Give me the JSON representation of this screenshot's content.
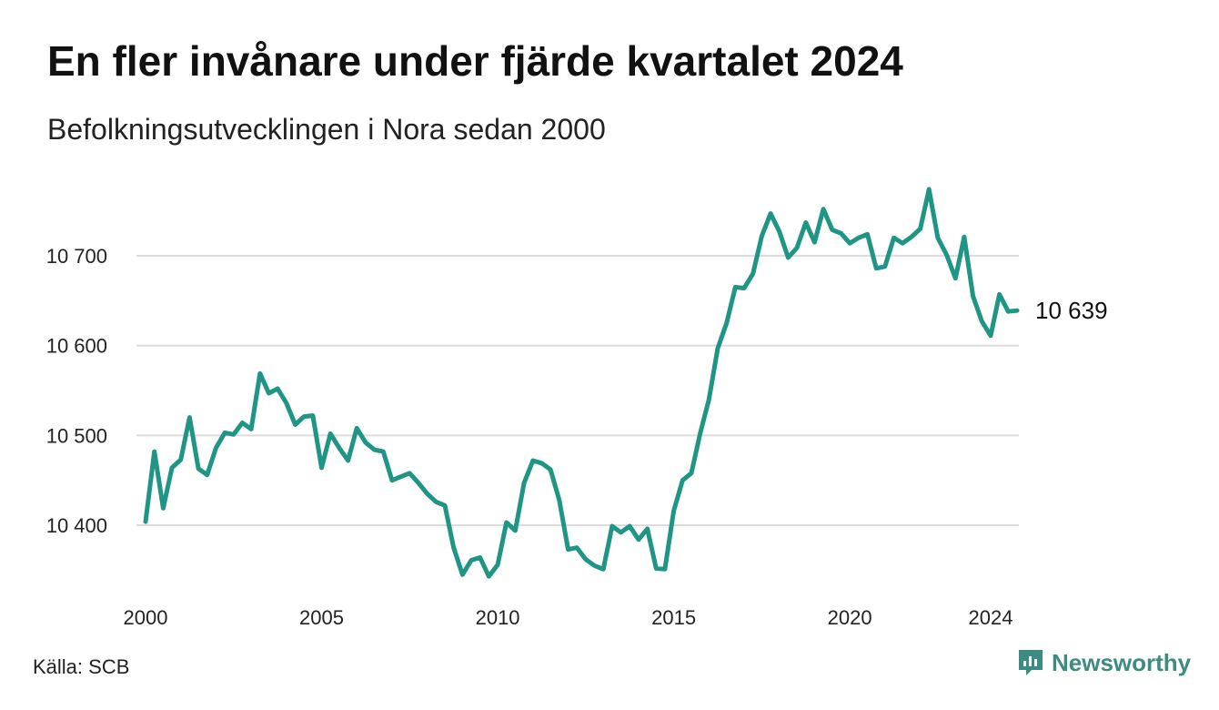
{
  "title": "En fler invånare under fjärde kvartalet 2024",
  "subtitle": "Befolkningsutvecklingen i Nora sedan 2000",
  "source": "Källa: SCB",
  "brand": {
    "name": "Newsworthy",
    "icon": "newsworthy-logo-icon",
    "color": "#3d8c83"
  },
  "chart_data": {
    "type": "line",
    "title": "En fler invånare under fjärde kvartalet 2024",
    "subtitle": "Befolkningsutvecklingen i Nora sedan 2000",
    "xlabel": "",
    "ylabel": "",
    "x_ticks": [
      "2000",
      "2005",
      "2010",
      "2015",
      "2020",
      "2024"
    ],
    "y_ticks": [
      "10 400",
      "10 500",
      "10 600",
      "10 700"
    ],
    "ylim": [
      10330,
      10780
    ],
    "grid": true,
    "line_color": "#1f9585",
    "end_label": "10 639",
    "series": [
      {
        "x": [
          "2000 Q1",
          "2000 Q2",
          "2000 Q3",
          "2000 Q4",
          "2001 Q1",
          "2001 Q2",
          "2001 Q3",
          "2001 Q4",
          "2002 Q1",
          "2002 Q2",
          "2002 Q3",
          "2002 Q4",
          "2003 Q1",
          "2003 Q2",
          "2003 Q3",
          "2003 Q4",
          "2004 Q1",
          "2004 Q2",
          "2004 Q3",
          "2004 Q4",
          "2005 Q1",
          "2005 Q2",
          "2005 Q3",
          "2005 Q4",
          "2006 Q1",
          "2006 Q2",
          "2006 Q3",
          "2006 Q4",
          "2007 Q1",
          "2007 Q2",
          "2007 Q3",
          "2007 Q4",
          "2008 Q1",
          "2008 Q2",
          "2008 Q3",
          "2008 Q4",
          "2009 Q1",
          "2009 Q2",
          "2009 Q3",
          "2009 Q4",
          "2010 Q1",
          "2010 Q2",
          "2010 Q3",
          "2010 Q4",
          "2011 Q1",
          "2011 Q2",
          "2011 Q3",
          "2011 Q4",
          "2012 Q1",
          "2012 Q2",
          "2012 Q3",
          "2012 Q4",
          "2013 Q1",
          "2013 Q2",
          "2013 Q3",
          "2013 Q4",
          "2014 Q1",
          "2014 Q2",
          "2014 Q3",
          "2014 Q4",
          "2015 Q1",
          "2015 Q2",
          "2015 Q3",
          "2015 Q4",
          "2016 Q1",
          "2016 Q2",
          "2016 Q3",
          "2016 Q4",
          "2017 Q1",
          "2017 Q2",
          "2017 Q3",
          "2017 Q4",
          "2018 Q1",
          "2018 Q2",
          "2018 Q3",
          "2018 Q4",
          "2019 Q1",
          "2019 Q2",
          "2019 Q3",
          "2019 Q4",
          "2020 Q1",
          "2020 Q2",
          "2020 Q3",
          "2020 Q4",
          "2021 Q1",
          "2021 Q2",
          "2021 Q3",
          "2021 Q4",
          "2022 Q1",
          "2022 Q2",
          "2022 Q3",
          "2022 Q4",
          "2023 Q1",
          "2023 Q2",
          "2023 Q3",
          "2023 Q4",
          "2024 Q1",
          "2024 Q2",
          "2024 Q3",
          "2024 Q4"
        ],
        "values": [
          10404,
          10482,
          10419,
          10464,
          10473,
          10520,
          10463,
          10456,
          10486,
          10503,
          10501,
          10514,
          10507,
          10569,
          10547,
          10552,
          10536,
          10512,
          10521,
          10522,
          10464,
          10502,
          10486,
          10472,
          10508,
          10492,
          10484,
          10482,
          10450,
          10454,
          10458,
          10447,
          10435,
          10426,
          10422,
          10375,
          10345,
          10361,
          10364,
          10343,
          10356,
          10403,
          10394,
          10447,
          10472,
          10469,
          10462,
          10428,
          10373,
          10375,
          10362,
          10355,
          10351,
          10399,
          10392,
          10399,
          10384,
          10396,
          10352,
          10351,
          10416,
          10450,
          10458,
          10502,
          10540,
          10597,
          10625,
          10665,
          10664,
          10680,
          10722,
          10747,
          10727,
          10698,
          10709,
          10737,
          10715,
          10752,
          10729,
          10725,
          10714,
          10720,
          10724,
          10686,
          10688,
          10720,
          10714,
          10721,
          10730,
          10774,
          10720,
          10701,
          10675,
          10721,
          10655,
          10627,
          10611,
          10657,
          10638,
          10639
        ]
      }
    ]
  }
}
